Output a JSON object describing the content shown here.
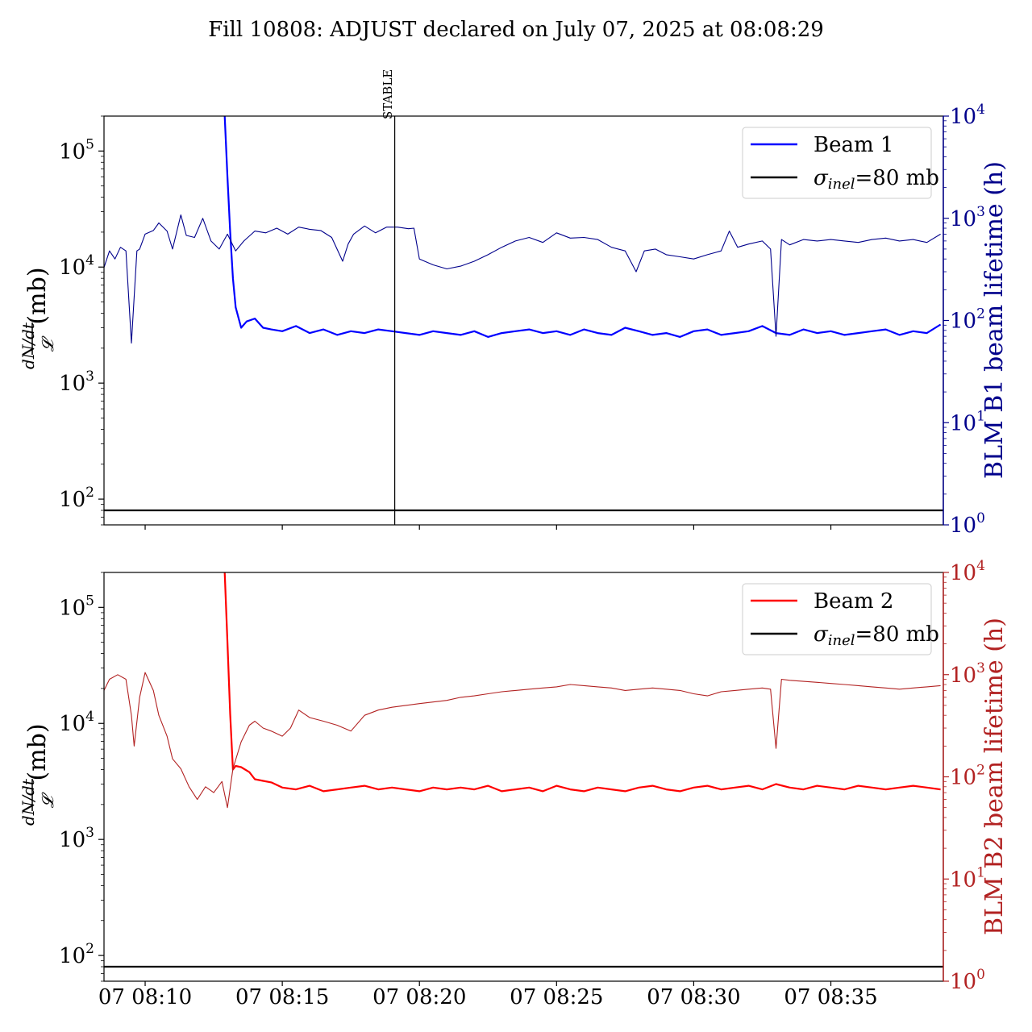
{
  "figure": {
    "title": "Fill 10808: ADJUST declared on July 07, 2025 at 08:08:29"
  },
  "colors": {
    "beam1_lifetime": "#00008b",
    "beam1_rate": "#0000ff",
    "beam2_lifetime": "#b22222",
    "beam2_rate": "#ff0000",
    "sigma_line": "#000000",
    "marker_line": "#000000"
  },
  "x_axis": {
    "tick_labels": [
      "07 08:10",
      "07 08:15",
      "07 08:20",
      "07 08:25",
      "07 08:30",
      "07 08:35"
    ],
    "tick_minutes": [
      10,
      15,
      20,
      25,
      30,
      35
    ],
    "range_minutes": [
      8.5,
      39.1
    ],
    "units": "minutes after 08:00 on July 07, 2025"
  },
  "chart_data": [
    {
      "type": "line",
      "panel": "top",
      "title": "",
      "ylabel_left": "dN/dt / 𝓛 (mb)",
      "ylabel_right": "BLM B1 beam lifetime (h)",
      "left_axis": {
        "scale": "log",
        "ylim": [
          60,
          200000
        ],
        "tick_values": [
          100,
          1000,
          10000,
          100000
        ],
        "tick_exponents": [
          "2",
          "3",
          "4",
          "5"
        ]
      },
      "right_axis": {
        "scale": "log",
        "ylim": [
          1,
          10000
        ],
        "tick_values": [
          1,
          10,
          100,
          1000,
          10000
        ],
        "tick_exponents": [
          "0",
          "1",
          "2",
          "3",
          "4"
        ]
      },
      "legend": {
        "placement": "top-right",
        "entries": [
          "Beam 1",
          "σinel=80 mb"
        ]
      },
      "vertical_marker": {
        "label": "STABLE",
        "x_minute": 19.1
      },
      "sigma_inel_mb": 80,
      "series": [
        {
          "name": "Beam 1",
          "axis": "left",
          "style": "thick",
          "x_minutes": [
            12.9,
            13.0,
            13.1,
            13.2,
            13.3,
            13.5,
            13.7,
            14.0,
            14.3,
            14.6,
            15.0,
            15.5,
            16.0,
            16.5,
            17.0,
            17.5,
            18.0,
            18.5,
            19.0,
            19.5,
            20.0,
            20.5,
            21.0,
            21.5,
            22.0,
            22.5,
            23.0,
            23.5,
            24.0,
            24.5,
            25.0,
            25.5,
            26.0,
            26.5,
            27.0,
            27.5,
            28.0,
            28.5,
            29.0,
            29.5,
            30.0,
            30.5,
            31.0,
            31.5,
            32.0,
            32.5,
            33.0,
            33.5,
            34.0,
            34.5,
            35.0,
            35.5,
            36.0,
            36.5,
            37.0,
            37.5,
            38.0,
            38.5,
            39.0
          ],
          "values": [
            200000,
            60000,
            20000,
            8000,
            4500,
            3000,
            3400,
            3600,
            3000,
            2900,
            2800,
            3100,
            2700,
            2900,
            2600,
            2800,
            2700,
            2900,
            2800,
            2700,
            2600,
            2800,
            2700,
            2600,
            2800,
            2500,
            2700,
            2800,
            2900,
            2700,
            2800,
            2600,
            2900,
            2700,
            2600,
            3000,
            2800,
            2600,
            2700,
            2500,
            2800,
            2900,
            2600,
            2700,
            2800,
            3100,
            2700,
            2600,
            2900,
            2700,
            2800,
            2600,
            2700,
            2800,
            2900,
            2600,
            2800,
            2700,
            3200
          ]
        },
        {
          "name": "BLM B1 lifetime",
          "axis": "right",
          "style": "thin",
          "x_minutes": [
            8.5,
            8.7,
            8.9,
            9.1,
            9.3,
            9.5,
            9.7,
            9.8,
            10.0,
            10.3,
            10.5,
            10.8,
            11.0,
            11.3,
            11.5,
            11.8,
            12.1,
            12.4,
            12.7,
            13.0,
            13.3,
            13.6,
            14.0,
            14.4,
            14.8,
            15.2,
            15.6,
            16.0,
            16.4,
            16.8,
            17.2,
            17.4,
            17.6,
            18.0,
            18.4,
            18.8,
            19.2,
            19.6,
            19.8,
            20.0,
            20.5,
            21.0,
            21.5,
            22.0,
            22.5,
            23.0,
            23.5,
            24.0,
            24.5,
            25.0,
            25.5,
            26.0,
            26.5,
            27.0,
            27.5,
            27.9,
            28.2,
            28.6,
            29.0,
            29.5,
            30.0,
            30.5,
            31.0,
            31.3,
            31.6,
            32.0,
            32.5,
            32.8,
            33.0,
            33.2,
            33.5,
            34.0,
            34.5,
            35.0,
            35.5,
            36.0,
            36.5,
            37.0,
            37.5,
            38.0,
            38.5,
            39.0
          ],
          "values": [
            330,
            480,
            400,
            520,
            480,
            60,
            480,
            500,
            700,
            760,
            900,
            750,
            500,
            1080,
            680,
            650,
            1000,
            600,
            500,
            700,
            480,
            600,
            750,
            720,
            800,
            700,
            820,
            780,
            760,
            650,
            380,
            560,
            700,
            840,
            720,
            820,
            820,
            790,
            800,
            400,
            350,
            320,
            340,
            380,
            440,
            520,
            600,
            650,
            580,
            720,
            640,
            650,
            620,
            520,
            480,
            300,
            480,
            500,
            440,
            420,
            400,
            440,
            480,
            750,
            520,
            560,
            600,
            500,
            70,
            620,
            550,
            620,
            600,
            620,
            600,
            580,
            620,
            640,
            600,
            620,
            580,
            700
          ]
        }
      ]
    },
    {
      "type": "line",
      "panel": "bottom",
      "title": "",
      "ylabel_left": "dN/dt / 𝓛 (mb)",
      "ylabel_right": "BLM B2 beam lifetime (h)",
      "left_axis": {
        "scale": "log",
        "ylim": [
          60,
          200000
        ],
        "tick_values": [
          100,
          1000,
          10000,
          100000
        ],
        "tick_exponents": [
          "2",
          "3",
          "4",
          "5"
        ]
      },
      "right_axis": {
        "scale": "log",
        "ylim": [
          1,
          10000
        ],
        "tick_values": [
          1,
          10,
          100,
          1000,
          10000
        ],
        "tick_exponents": [
          "0",
          "1",
          "2",
          "3",
          "4"
        ]
      },
      "legend": {
        "placement": "top-right",
        "entries": [
          "Beam 2",
          "σinel=80 mb"
        ]
      },
      "sigma_inel_mb": 80,
      "series": [
        {
          "name": "Beam 2",
          "axis": "left",
          "style": "thick",
          "x_minutes": [
            12.9,
            13.0,
            13.1,
            13.2,
            13.3,
            13.5,
            13.8,
            14.0,
            14.3,
            14.6,
            15.0,
            15.5,
            16.0,
            16.5,
            17.0,
            17.5,
            18.0,
            18.5,
            19.0,
            19.5,
            20.0,
            20.5,
            21.0,
            21.5,
            22.0,
            22.5,
            23.0,
            23.5,
            24.0,
            24.5,
            25.0,
            25.5,
            26.0,
            26.5,
            27.0,
            27.5,
            28.0,
            28.5,
            29.0,
            29.5,
            30.0,
            30.5,
            31.0,
            31.5,
            32.0,
            32.5,
            33.0,
            33.5,
            34.0,
            34.5,
            35.0,
            35.5,
            36.0,
            36.5,
            37.0,
            37.5,
            38.0,
            38.5,
            39.0
          ],
          "values": [
            200000,
            50000,
            12000,
            4000,
            4300,
            4200,
            3800,
            3300,
            3200,
            3100,
            2800,
            2700,
            2900,
            2600,
            2700,
            2800,
            2900,
            2700,
            2800,
            2700,
            2600,
            2800,
            2700,
            2800,
            2700,
            2900,
            2600,
            2700,
            2800,
            2600,
            2900,
            2700,
            2600,
            2800,
            2700,
            2600,
            2800,
            2900,
            2700,
            2600,
            2800,
            2900,
            2700,
            2800,
            2900,
            2700,
            3000,
            2800,
            2700,
            2900,
            2800,
            2700,
            2900,
            2800,
            2700,
            2800,
            2900,
            2800,
            2700
          ]
        },
        {
          "name": "BLM B2 lifetime",
          "axis": "right",
          "style": "thin",
          "x_minutes": [
            8.5,
            8.7,
            9.0,
            9.3,
            9.5,
            9.6,
            9.8,
            10.0,
            10.3,
            10.5,
            10.8,
            11.0,
            11.3,
            11.6,
            11.9,
            12.2,
            12.5,
            12.8,
            13.0,
            13.2,
            13.5,
            13.8,
            14.0,
            14.3,
            14.6,
            15.0,
            15.3,
            15.6,
            16.0,
            16.5,
            17.0,
            17.5,
            18.0,
            18.5,
            19.0,
            19.5,
            20.0,
            20.5,
            21.0,
            21.5,
            22.0,
            22.5,
            23.0,
            23.5,
            24.0,
            24.5,
            25.0,
            25.5,
            26.0,
            26.5,
            27.0,
            27.5,
            28.0,
            28.5,
            29.0,
            29.5,
            30.0,
            30.5,
            31.0,
            31.5,
            32.0,
            32.5,
            32.8,
            33.0,
            33.2,
            33.5,
            34.0,
            34.5,
            35.0,
            35.5,
            36.0,
            36.5,
            37.0,
            37.5,
            38.0,
            38.5,
            39.0
          ],
          "values": [
            700,
            900,
            1000,
            900,
            400,
            200,
            600,
            1050,
            700,
            400,
            250,
            150,
            120,
            80,
            60,
            80,
            70,
            90,
            50,
            120,
            220,
            320,
            350,
            300,
            280,
            250,
            300,
            450,
            380,
            350,
            320,
            280,
            400,
            450,
            480,
            500,
            520,
            540,
            560,
            600,
            620,
            650,
            680,
            700,
            720,
            740,
            760,
            800,
            780,
            760,
            740,
            700,
            720,
            740,
            720,
            700,
            650,
            620,
            680,
            700,
            720,
            740,
            720,
            190,
            900,
            880,
            860,
            840,
            820,
            800,
            780,
            760,
            740,
            720,
            740,
            760,
            780
          ]
        }
      ]
    }
  ]
}
